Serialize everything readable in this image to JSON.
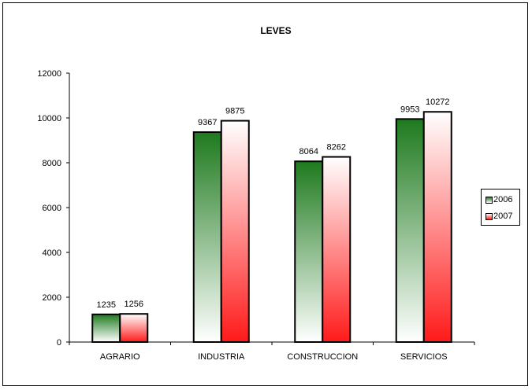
{
  "chart_data": {
    "type": "bar",
    "title": "LEVES",
    "categories": [
      "AGRARIO",
      "INDUSTRIA",
      "CONSTRUCCION",
      "SERVICIOS"
    ],
    "series": [
      {
        "name": "2006",
        "values": [
          1235,
          9367,
          8064,
          9953
        ],
        "color_top": "#1e7a1e",
        "color_bottom": "#ffffff"
      },
      {
        "name": "2007",
        "values": [
          1256,
          9875,
          8262,
          10272
        ],
        "color_top": "#ffffff",
        "color_bottom": "#ff1a1a"
      }
    ],
    "ylim": [
      0,
      12000
    ],
    "yticks": [
      "0",
      "2000",
      "4000",
      "6000",
      "8000",
      "10000",
      "12000"
    ],
    "data_labels": true,
    "grid": false,
    "legend_position": "right"
  }
}
